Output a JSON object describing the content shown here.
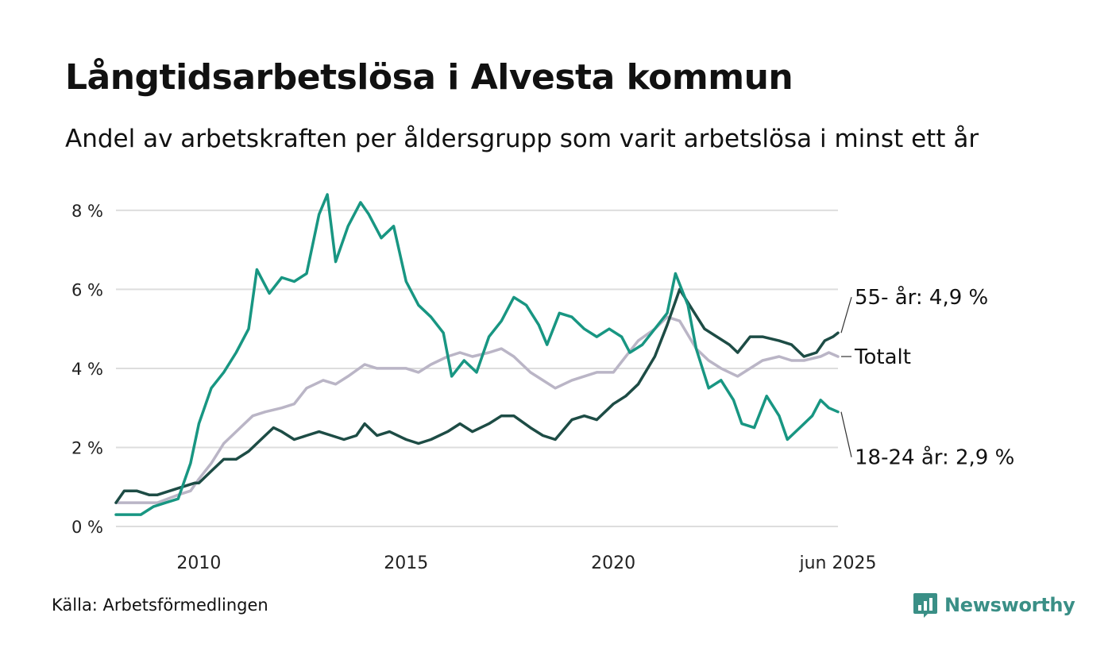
{
  "title": "Långtidsarbetslösa i Alvesta kommun",
  "subtitle": "Andel av arbetskraften per åldersgrupp som varit arbetslösa i minst ett år",
  "source": "Källa: Arbetsförmedlingen",
  "brand": {
    "name": "Newsworthy",
    "icon": "newsworthy-logo-icon",
    "color": "#3a8f86"
  },
  "chart_data": {
    "type": "line",
    "title": "Långtidsarbetslösa i Alvesta kommun",
    "xlabel": "",
    "ylabel": "",
    "x_ticks": [
      {
        "x": 2010,
        "label": "2010"
      },
      {
        "x": 2015,
        "label": "2015"
      },
      {
        "x": 2020,
        "label": "2020"
      },
      {
        "x": 2025.42,
        "label": "jun 2025"
      }
    ],
    "y_ticks": [
      {
        "y": 0,
        "label": "0 %"
      },
      {
        "y": 2,
        "label": "2 %"
      },
      {
        "y": 4,
        "label": "4 %"
      },
      {
        "y": 6,
        "label": "6 %"
      },
      {
        "y": 8,
        "label": "8 %"
      }
    ],
    "xlim": [
      2008.0,
      2025.42
    ],
    "ylim": [
      0,
      8.5
    ],
    "grid": true,
    "legend": "direct labels at line ends (right)",
    "series": [
      {
        "name": "Totalt",
        "label": "Totalt",
        "color": "#bab5c6",
        "points": [
          [
            2008.0,
            0.6
          ],
          [
            2008.5,
            0.6
          ],
          [
            2009.0,
            0.6
          ],
          [
            2009.5,
            0.8
          ],
          [
            2009.8,
            0.9
          ],
          [
            2010.0,
            1.2
          ],
          [
            2010.3,
            1.6
          ],
          [
            2010.6,
            2.1
          ],
          [
            2011.0,
            2.5
          ],
          [
            2011.3,
            2.8
          ],
          [
            2011.6,
            2.9
          ],
          [
            2012.0,
            3.0
          ],
          [
            2012.3,
            3.1
          ],
          [
            2012.6,
            3.5
          ],
          [
            2013.0,
            3.7
          ],
          [
            2013.3,
            3.6
          ],
          [
            2013.6,
            3.8
          ],
          [
            2014.0,
            4.1
          ],
          [
            2014.3,
            4.0
          ],
          [
            2014.6,
            4.0
          ],
          [
            2015.0,
            4.0
          ],
          [
            2015.3,
            3.9
          ],
          [
            2015.6,
            4.1
          ],
          [
            2016.0,
            4.3
          ],
          [
            2016.3,
            4.4
          ],
          [
            2016.6,
            4.3
          ],
          [
            2017.0,
            4.4
          ],
          [
            2017.3,
            4.5
          ],
          [
            2017.6,
            4.3
          ],
          [
            2018.0,
            3.9
          ],
          [
            2018.3,
            3.7
          ],
          [
            2018.6,
            3.5
          ],
          [
            2019.0,
            3.7
          ],
          [
            2019.3,
            3.8
          ],
          [
            2019.6,
            3.9
          ],
          [
            2020.0,
            3.9
          ],
          [
            2020.3,
            4.3
          ],
          [
            2020.6,
            4.7
          ],
          [
            2021.0,
            5.0
          ],
          [
            2021.3,
            5.3
          ],
          [
            2021.6,
            5.2
          ],
          [
            2022.0,
            4.5
          ],
          [
            2022.3,
            4.2
          ],
          [
            2022.6,
            4.0
          ],
          [
            2023.0,
            3.8
          ],
          [
            2023.3,
            4.0
          ],
          [
            2023.6,
            4.2
          ],
          [
            2024.0,
            4.3
          ],
          [
            2024.3,
            4.2
          ],
          [
            2024.6,
            4.2
          ],
          [
            2025.0,
            4.3
          ],
          [
            2025.2,
            4.4
          ],
          [
            2025.42,
            4.3
          ]
        ]
      },
      {
        "name": "55- år",
        "label": "55- år: 4,9 %",
        "color": "#1d4c45",
        "points": [
          [
            2008.0,
            0.6
          ],
          [
            2008.2,
            0.9
          ],
          [
            2008.5,
            0.9
          ],
          [
            2008.8,
            0.8
          ],
          [
            2009.0,
            0.8
          ],
          [
            2009.3,
            0.9
          ],
          [
            2009.6,
            1.0
          ],
          [
            2009.9,
            1.1
          ],
          [
            2010.0,
            1.1
          ],
          [
            2010.3,
            1.4
          ],
          [
            2010.6,
            1.7
          ],
          [
            2010.9,
            1.7
          ],
          [
            2011.2,
            1.9
          ],
          [
            2011.5,
            2.2
          ],
          [
            2011.8,
            2.5
          ],
          [
            2012.0,
            2.4
          ],
          [
            2012.3,
            2.2
          ],
          [
            2012.6,
            2.3
          ],
          [
            2012.9,
            2.4
          ],
          [
            2013.2,
            2.3
          ],
          [
            2013.5,
            2.2
          ],
          [
            2013.8,
            2.3
          ],
          [
            2014.0,
            2.6
          ],
          [
            2014.3,
            2.3
          ],
          [
            2014.6,
            2.4
          ],
          [
            2015.0,
            2.2
          ],
          [
            2015.3,
            2.1
          ],
          [
            2015.6,
            2.2
          ],
          [
            2016.0,
            2.4
          ],
          [
            2016.3,
            2.6
          ],
          [
            2016.6,
            2.4
          ],
          [
            2017.0,
            2.6
          ],
          [
            2017.3,
            2.8
          ],
          [
            2017.6,
            2.8
          ],
          [
            2018.0,
            2.5
          ],
          [
            2018.3,
            2.3
          ],
          [
            2018.6,
            2.2
          ],
          [
            2019.0,
            2.7
          ],
          [
            2019.3,
            2.8
          ],
          [
            2019.6,
            2.7
          ],
          [
            2020.0,
            3.1
          ],
          [
            2020.3,
            3.3
          ],
          [
            2020.6,
            3.6
          ],
          [
            2021.0,
            4.3
          ],
          [
            2021.3,
            5.1
          ],
          [
            2021.6,
            6.0
          ],
          [
            2021.9,
            5.5
          ],
          [
            2022.2,
            5.0
          ],
          [
            2022.5,
            4.8
          ],
          [
            2022.8,
            4.6
          ],
          [
            2023.0,
            4.4
          ],
          [
            2023.3,
            4.8
          ],
          [
            2023.6,
            4.8
          ],
          [
            2024.0,
            4.7
          ],
          [
            2024.3,
            4.6
          ],
          [
            2024.6,
            4.3
          ],
          [
            2024.9,
            4.4
          ],
          [
            2025.1,
            4.7
          ],
          [
            2025.3,
            4.8
          ],
          [
            2025.42,
            4.9
          ]
        ]
      },
      {
        "name": "18-24 år",
        "label": "18-24 år: 2,9 %",
        "color": "#189682",
        "points": [
          [
            2008.0,
            0.3
          ],
          [
            2008.3,
            0.3
          ],
          [
            2008.6,
            0.3
          ],
          [
            2008.9,
            0.5
          ],
          [
            2009.2,
            0.6
          ],
          [
            2009.5,
            0.7
          ],
          [
            2009.8,
            1.6
          ],
          [
            2010.0,
            2.6
          ],
          [
            2010.3,
            3.5
          ],
          [
            2010.6,
            3.9
          ],
          [
            2010.9,
            4.4
          ],
          [
            2011.2,
            5.0
          ],
          [
            2011.4,
            6.5
          ],
          [
            2011.7,
            5.9
          ],
          [
            2012.0,
            6.3
          ],
          [
            2012.3,
            6.2
          ],
          [
            2012.6,
            6.4
          ],
          [
            2012.9,
            7.9
          ],
          [
            2013.1,
            8.4
          ],
          [
            2013.3,
            6.7
          ],
          [
            2013.6,
            7.6
          ],
          [
            2013.9,
            8.2
          ],
          [
            2014.1,
            7.9
          ],
          [
            2014.4,
            7.3
          ],
          [
            2014.7,
            7.6
          ],
          [
            2015.0,
            6.2
          ],
          [
            2015.3,
            5.6
          ],
          [
            2015.6,
            5.3
          ],
          [
            2015.9,
            4.9
          ],
          [
            2016.1,
            3.8
          ],
          [
            2016.4,
            4.2
          ],
          [
            2016.7,
            3.9
          ],
          [
            2017.0,
            4.8
          ],
          [
            2017.3,
            5.2
          ],
          [
            2017.6,
            5.8
          ],
          [
            2017.9,
            5.6
          ],
          [
            2018.2,
            5.1
          ],
          [
            2018.4,
            4.6
          ],
          [
            2018.7,
            5.4
          ],
          [
            2019.0,
            5.3
          ],
          [
            2019.3,
            5.0
          ],
          [
            2019.6,
            4.8
          ],
          [
            2019.9,
            5.0
          ],
          [
            2020.2,
            4.8
          ],
          [
            2020.4,
            4.4
          ],
          [
            2020.7,
            4.6
          ],
          [
            2021.0,
            5.0
          ],
          [
            2021.3,
            5.4
          ],
          [
            2021.5,
            6.4
          ],
          [
            2021.8,
            5.6
          ],
          [
            2022.0,
            4.5
          ],
          [
            2022.3,
            3.5
          ],
          [
            2022.6,
            3.7
          ],
          [
            2022.9,
            3.2
          ],
          [
            2023.1,
            2.6
          ],
          [
            2023.4,
            2.5
          ],
          [
            2023.7,
            3.3
          ],
          [
            2024.0,
            2.8
          ],
          [
            2024.2,
            2.2
          ],
          [
            2024.5,
            2.5
          ],
          [
            2024.8,
            2.8
          ],
          [
            2025.0,
            3.2
          ],
          [
            2025.2,
            3.0
          ],
          [
            2025.42,
            2.9
          ]
        ]
      }
    ]
  }
}
